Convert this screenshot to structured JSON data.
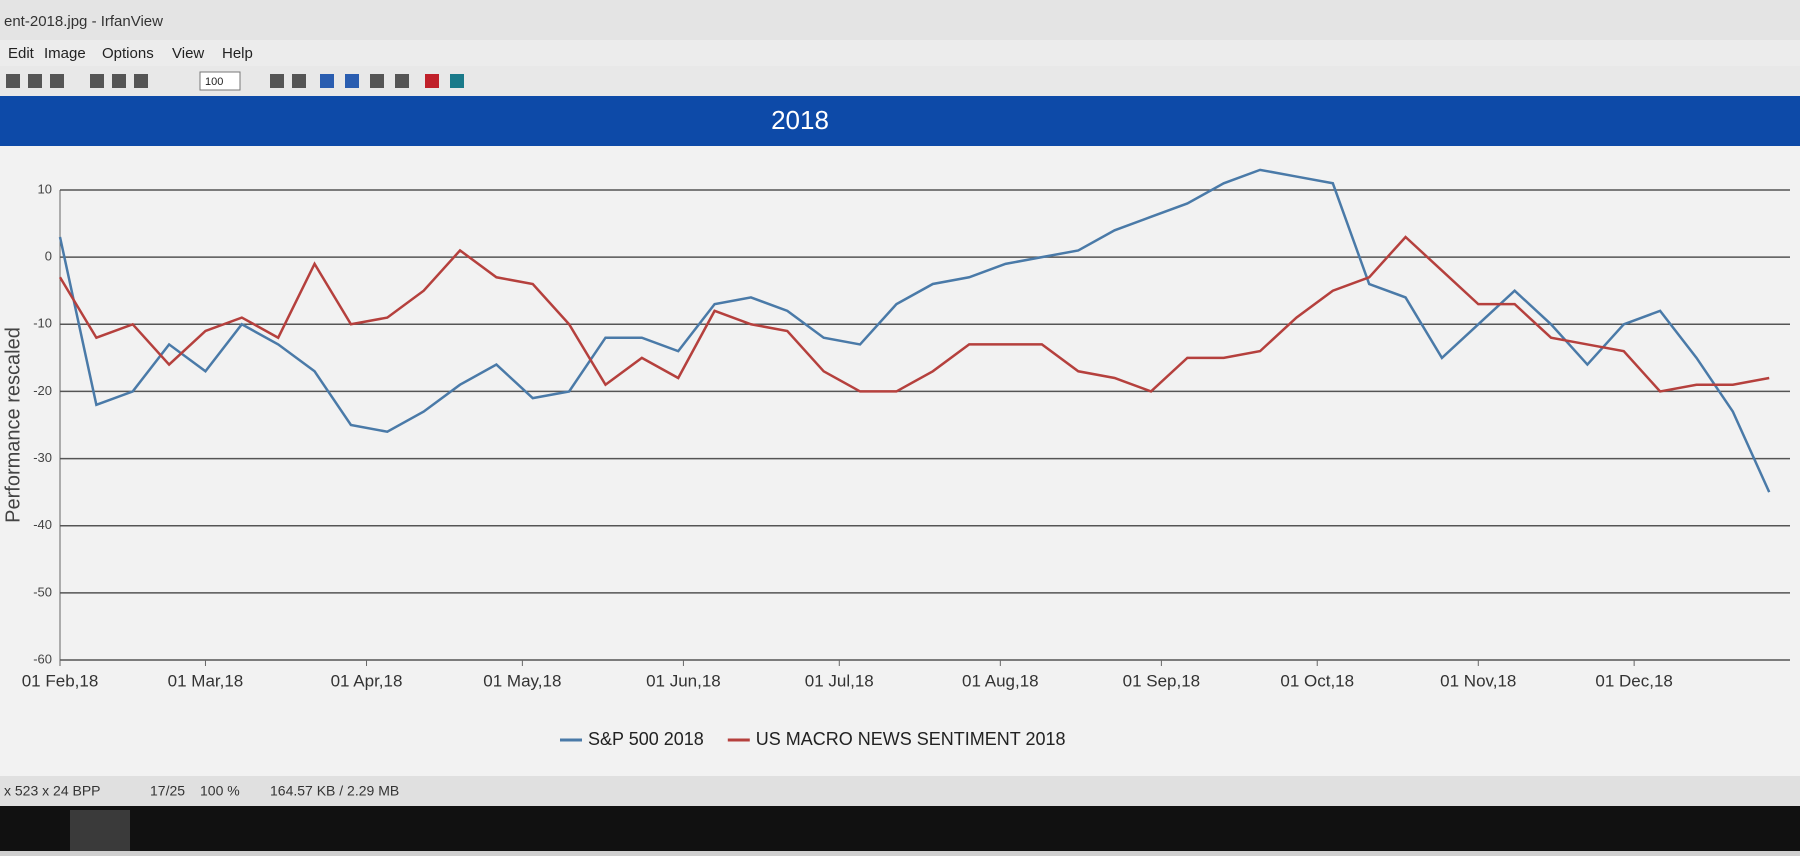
{
  "window": {
    "title": "ent-2018.jpg - IrfanView",
    "menu": [
      "Edit",
      "Image",
      "Options",
      "View",
      "Help"
    ],
    "zoom_box": "100"
  },
  "status_bar": [
    "x 523 x 24 BPP",
    "17/25",
    "100 %",
    "164.57 KB / 2.29 MB"
  ],
  "chart_data": {
    "type": "line",
    "title": "2018",
    "y_label": "Performance rescaled",
    "x": [
      "2018-02-01",
      "2018-02-08",
      "2018-02-15",
      "2018-02-22",
      "2018-03-01",
      "2018-03-08",
      "2018-03-15",
      "2018-03-22",
      "2018-03-29",
      "2018-04-05",
      "2018-04-12",
      "2018-04-19",
      "2018-04-26",
      "2018-05-03",
      "2018-05-10",
      "2018-05-17",
      "2018-05-24",
      "2018-05-31",
      "2018-06-07",
      "2018-06-14",
      "2018-06-21",
      "2018-06-28",
      "2018-07-05",
      "2018-07-12",
      "2018-07-19",
      "2018-07-26",
      "2018-08-02",
      "2018-08-09",
      "2018-08-16",
      "2018-08-23",
      "2018-08-30",
      "2018-09-06",
      "2018-09-13",
      "2018-09-20",
      "2018-09-27",
      "2018-10-04",
      "2018-10-11",
      "2018-10-18",
      "2018-10-25",
      "2018-11-01",
      "2018-11-08",
      "2018-11-15",
      "2018-11-22",
      "2018-11-29",
      "2018-12-06",
      "2018-12-13",
      "2018-12-20",
      "2018-12-27"
    ],
    "series": [
      {
        "name": "S&P 500 2018",
        "color": "#4a7aa8",
        "values": [
          3,
          -22,
          -20,
          -13,
          -17,
          -10,
          -13,
          -17,
          -25,
          -26,
          -23,
          -19,
          -16,
          -21,
          -20,
          -12,
          -12,
          -14,
          -7,
          -6,
          -8,
          -12,
          -13,
          -7,
          -4,
          -3,
          -1,
          0,
          1,
          4,
          6,
          8,
          11,
          13,
          12,
          11,
          -4,
          -6,
          -15,
          -10,
          -5,
          -10,
          -16,
          -10,
          -8,
          -15,
          -23,
          -35
        ]
      },
      {
        "name": "US MACRO NEWS SENTIMENT 2018",
        "color": "#b5403d",
        "values": [
          -3,
          -12,
          -10,
          -16,
          -11,
          -9,
          -12,
          -1,
          -10,
          -9,
          -5,
          1,
          -3,
          -4,
          -10,
          -19,
          -15,
          -18,
          -8,
          -10,
          -11,
          -17,
          -20,
          -20,
          -17,
          -13,
          -13,
          -13,
          -17,
          -18,
          -20,
          -15,
          -15,
          -14,
          -9,
          -5,
          -3,
          3,
          -2,
          -7,
          -7,
          -12,
          -13,
          -14,
          -20,
          -19,
          -19,
          -18
        ]
      }
    ],
    "xlim": [
      "2018-02-01",
      "2018-12-31"
    ],
    "xticks": [
      {
        "value": "2018-02-01",
        "label": "01 Feb,18"
      },
      {
        "value": "2018-03-01",
        "label": "01 Mar,18"
      },
      {
        "value": "2018-04-01",
        "label": "01 Apr,18"
      },
      {
        "value": "2018-05-01",
        "label": "01 May,18"
      },
      {
        "value": "2018-06-01",
        "label": "01 Jun,18"
      },
      {
        "value": "2018-07-01",
        "label": "01 Jul,18"
      },
      {
        "value": "2018-08-01",
        "label": "01 Aug,18"
      },
      {
        "value": "2018-09-01",
        "label": "01 Sep,18"
      },
      {
        "value": "2018-10-01",
        "label": "01 Oct,18"
      },
      {
        "value": "2018-11-01",
        "label": "01 Nov,18"
      },
      {
        "value": "2018-12-01",
        "label": "01 Dec,18"
      }
    ],
    "ylim": [
      -60,
      10
    ],
    "yticks": [
      -60,
      -50,
      -40,
      -30,
      -20,
      -10,
      0,
      10
    ],
    "grid": true,
    "legend": "bottom"
  }
}
